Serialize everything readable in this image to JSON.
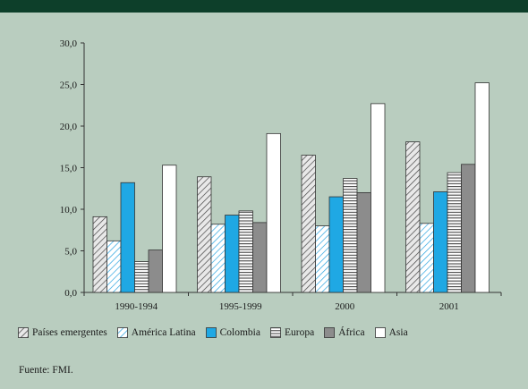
{
  "chart_data": {
    "type": "bar",
    "title": "",
    "xlabel": "",
    "ylabel": "",
    "ylim": [
      0,
      30
    ],
    "yticks": [
      "0,0",
      "5,0",
      "10,0",
      "15,0",
      "20,0",
      "25,0",
      "30,0"
    ],
    "categories": [
      "1990-1994",
      "1995-1999",
      "2000",
      "2001"
    ],
    "series": [
      {
        "name": "Países emergentes",
        "values": [
          9.1,
          13.9,
          16.5,
          18.1
        ],
        "color": "#e8e8e8",
        "pattern": "diag-dark"
      },
      {
        "name": "América Latina",
        "values": [
          6.2,
          8.2,
          8.0,
          8.3
        ],
        "color": "#ffffff",
        "pattern": "diag-blue"
      },
      {
        "name": "Colombia",
        "values": [
          13.2,
          9.3,
          11.5,
          12.1
        ],
        "color": "#1fa8e4",
        "pattern": "solid"
      },
      {
        "name": "Europa",
        "values": [
          3.7,
          9.8,
          13.7,
          14.4
        ],
        "color": "#ffffff",
        "pattern": "horiz"
      },
      {
        "name": "África",
        "values": [
          5.1,
          8.4,
          12.0,
          15.4
        ],
        "color": "#8c8c8c",
        "pattern": "solid"
      },
      {
        "name": "Asia",
        "values": [
          15.3,
          19.1,
          22.7,
          25.2
        ],
        "color": "#ffffff",
        "pattern": "solid"
      }
    ],
    "grid": false,
    "legend_position": "bottom"
  },
  "source": "Fuente: FMI."
}
